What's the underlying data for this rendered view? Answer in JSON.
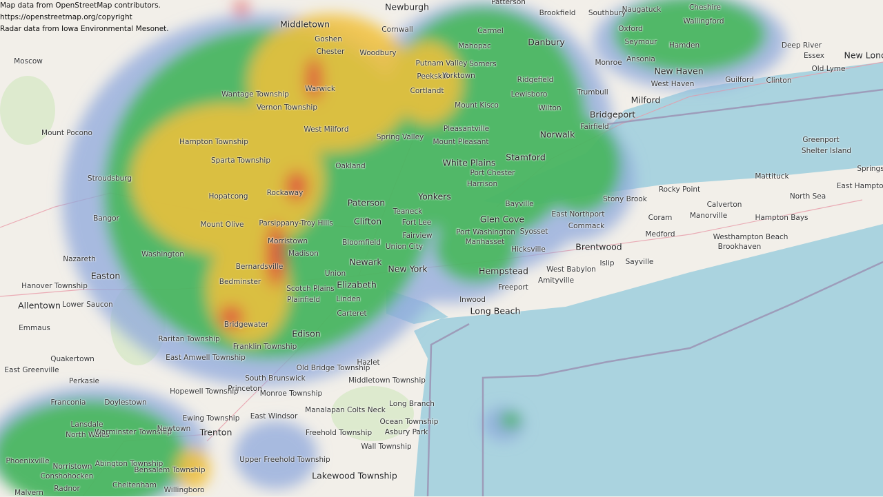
{
  "attribution": {
    "osm": "Map data from OpenStreetMap contributors.",
    "osm_url": "https://openstreetmap.org/copyright",
    "radar": "Radar data from Iowa Environmental Mesonet."
  },
  "colors": {
    "land": "#f2efe9",
    "water": "#aad3df",
    "radar_light": "#8fa8dc",
    "radar_green": "#3cb84a",
    "radar_yellow": "#f2c13a",
    "radar_red": "#e0403a"
  },
  "places": [
    "Newburgh",
    "Middletown",
    "Patterson",
    "Brookfield",
    "Southbury",
    "Naugatuck",
    "Cheshire",
    "Wallingford",
    "Danbury",
    "Deep River",
    "Essex",
    "Old Lyme",
    "New London",
    "Moscow",
    "Goshen",
    "Carmel",
    "Oxford",
    "Seymour",
    "Hamden",
    "Ansonia",
    "New Haven",
    "West Haven",
    "Guilford",
    "Clinton",
    "Monroe",
    "Trumbull",
    "Milford",
    "Bridgeport",
    "Fairfield",
    "Ridgefield",
    "Lewisboro",
    "Wilton",
    "Norwalk",
    "Stamford",
    "Mount Kisco",
    "Wantage Township",
    "Vernon Township",
    "Mount Pocono",
    "Hampton Township",
    "Sparta Township",
    "Stroudsburg",
    "Bangor",
    "Peekskill",
    "Cortlandt",
    "Yorktown",
    "White Plains",
    "Harrison",
    "Port Chester",
    "Mount Pleasant",
    "Pleasantville",
    "Spring Valley",
    "Yonkers",
    "Paterson",
    "Clifton",
    "Teaneck",
    "Fort Lee",
    "Fairview",
    "Union City",
    "Bloomfield",
    "Newark",
    "New York",
    "Elizabeth",
    "Linden",
    "Carteret",
    "Glen Cove",
    "Port Washington",
    "Manhasset",
    "Bayville",
    "Syosset",
    "Hicksville",
    "Hempstead",
    "Freeport",
    "Inwood",
    "Long Beach",
    "West Babylon",
    "Amityville",
    "Islip",
    "Sayville",
    "Brentwood",
    "Stony Brook",
    "Rocky Point",
    "East Northport",
    "Commack",
    "Medford",
    "Coram",
    "Calverton",
    "Manorville",
    "Brookhaven",
    "Westhampton Beach",
    "Hampton Bays",
    "North Sea",
    "Mattituck",
    "Greenport",
    "Shelter Island",
    "Springs",
    "East Hampton",
    "Nazareth",
    "Easton",
    "Hanover Township",
    "Allentown",
    "Lower Saucon",
    "Emmaus",
    "Quakertown",
    "East Greenville",
    "Perkasie",
    "Doylestown",
    "Franconia",
    "Lansdale",
    "North Wales",
    "Warminster Township",
    "Newtown",
    "Phoenixville",
    "Norristown",
    "Conshohocken",
    "Abington Township",
    "Cheltenham",
    "Bensalem Township",
    "Radnor",
    "Malvern",
    "Willingboro",
    "Trenton",
    "Ewing Township",
    "Hopewell Township",
    "Princeton",
    "East Windsor",
    "Monroe Township",
    "South Brunswick",
    "Edison",
    "Old Bridge Township",
    "Hazlet",
    "Middletown Township",
    "Long Branch",
    "Colts Neck",
    "Ocean Township",
    "Asbury Park",
    "Freehold Township",
    "Manalapan",
    "Wall Township",
    "Lakewood Township",
    "Upper Freehold Township",
    "Raritan Township",
    "East Amwell Township",
    "Franklin Township",
    "Bridgewater",
    "Plainfield",
    "Scotch Plains",
    "Union",
    "Morristown",
    "Madison",
    "Bernardsville",
    "Bedminster",
    "Mount Olive",
    "Parsippany-Troy Hills",
    "Washington",
    "Hopatcong",
    "Rockaway",
    "Oakland",
    "West Milford",
    "Warwick",
    "Chester",
    "Woodbury",
    "Putnam Valley",
    "Mahopac",
    "Somers",
    "Cornwall"
  ]
}
